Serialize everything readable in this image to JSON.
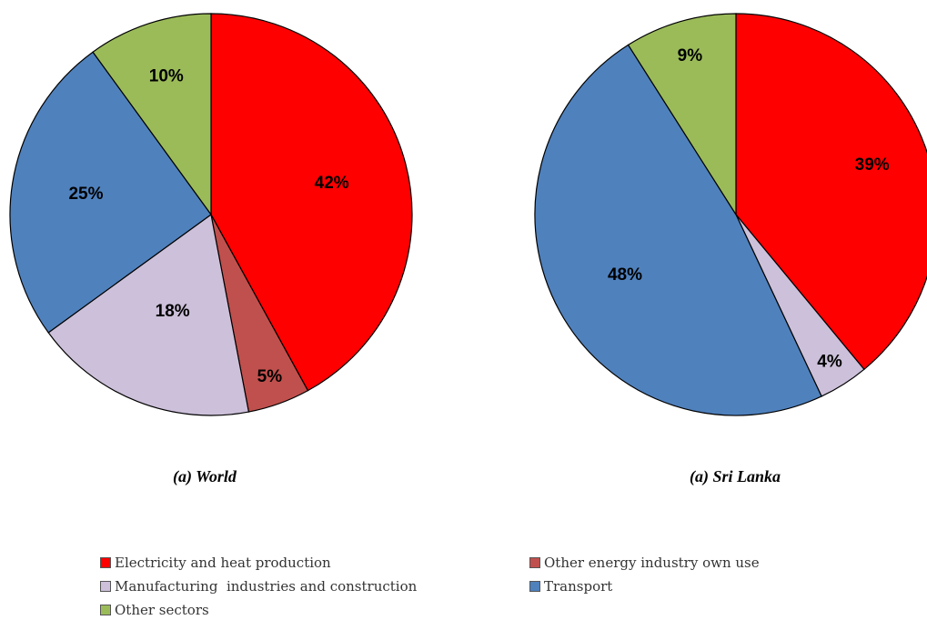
{
  "chart_data": [
    {
      "type": "pie",
      "caption": "(a) World",
      "slices": [
        {
          "category": "Electricity and heat production",
          "value": 42,
          "label": "42%",
          "color": "#ff0000"
        },
        {
          "category": "Other energy industry own use",
          "value": 5,
          "label": "5%",
          "color": "#c0504d"
        },
        {
          "category": "Manufacturing  industries and construction",
          "value": 18,
          "label": "18%",
          "color": "#ccc0da"
        },
        {
          "category": "Transport",
          "value": 25,
          "label": "25%",
          "color": "#4f81bd"
        },
        {
          "category": "Other sectors",
          "value": 10,
          "label": "10%",
          "color": "#9bbb59"
        }
      ]
    },
    {
      "type": "pie",
      "caption": "(a) Sri Lanka",
      "slices": [
        {
          "category": "Electricity and heat production",
          "value": 39,
          "label": "39%",
          "color": "#ff0000"
        },
        {
          "category": "Manufacturing  industries and construction",
          "value": 4,
          "label": "4%",
          "color": "#ccc0da"
        },
        {
          "category": "Transport",
          "value": 48,
          "label": "48%",
          "color": "#4f81bd"
        },
        {
          "category": "Other sectors",
          "value": 9,
          "label": "9%",
          "color": "#9bbb59"
        }
      ]
    }
  ],
  "legend": {
    "position": "bottom",
    "items": [
      {
        "label": "Electricity and heat production",
        "color": "#ff0000"
      },
      {
        "label": "Other energy industry own use",
        "color": "#c0504d"
      },
      {
        "label": "Manufacturing  industries and construction",
        "color": "#ccc0da"
      },
      {
        "label": "Transport",
        "color": "#4f81bd"
      },
      {
        "label": "Other sectors",
        "color": "#9bbb59"
      }
    ]
  }
}
